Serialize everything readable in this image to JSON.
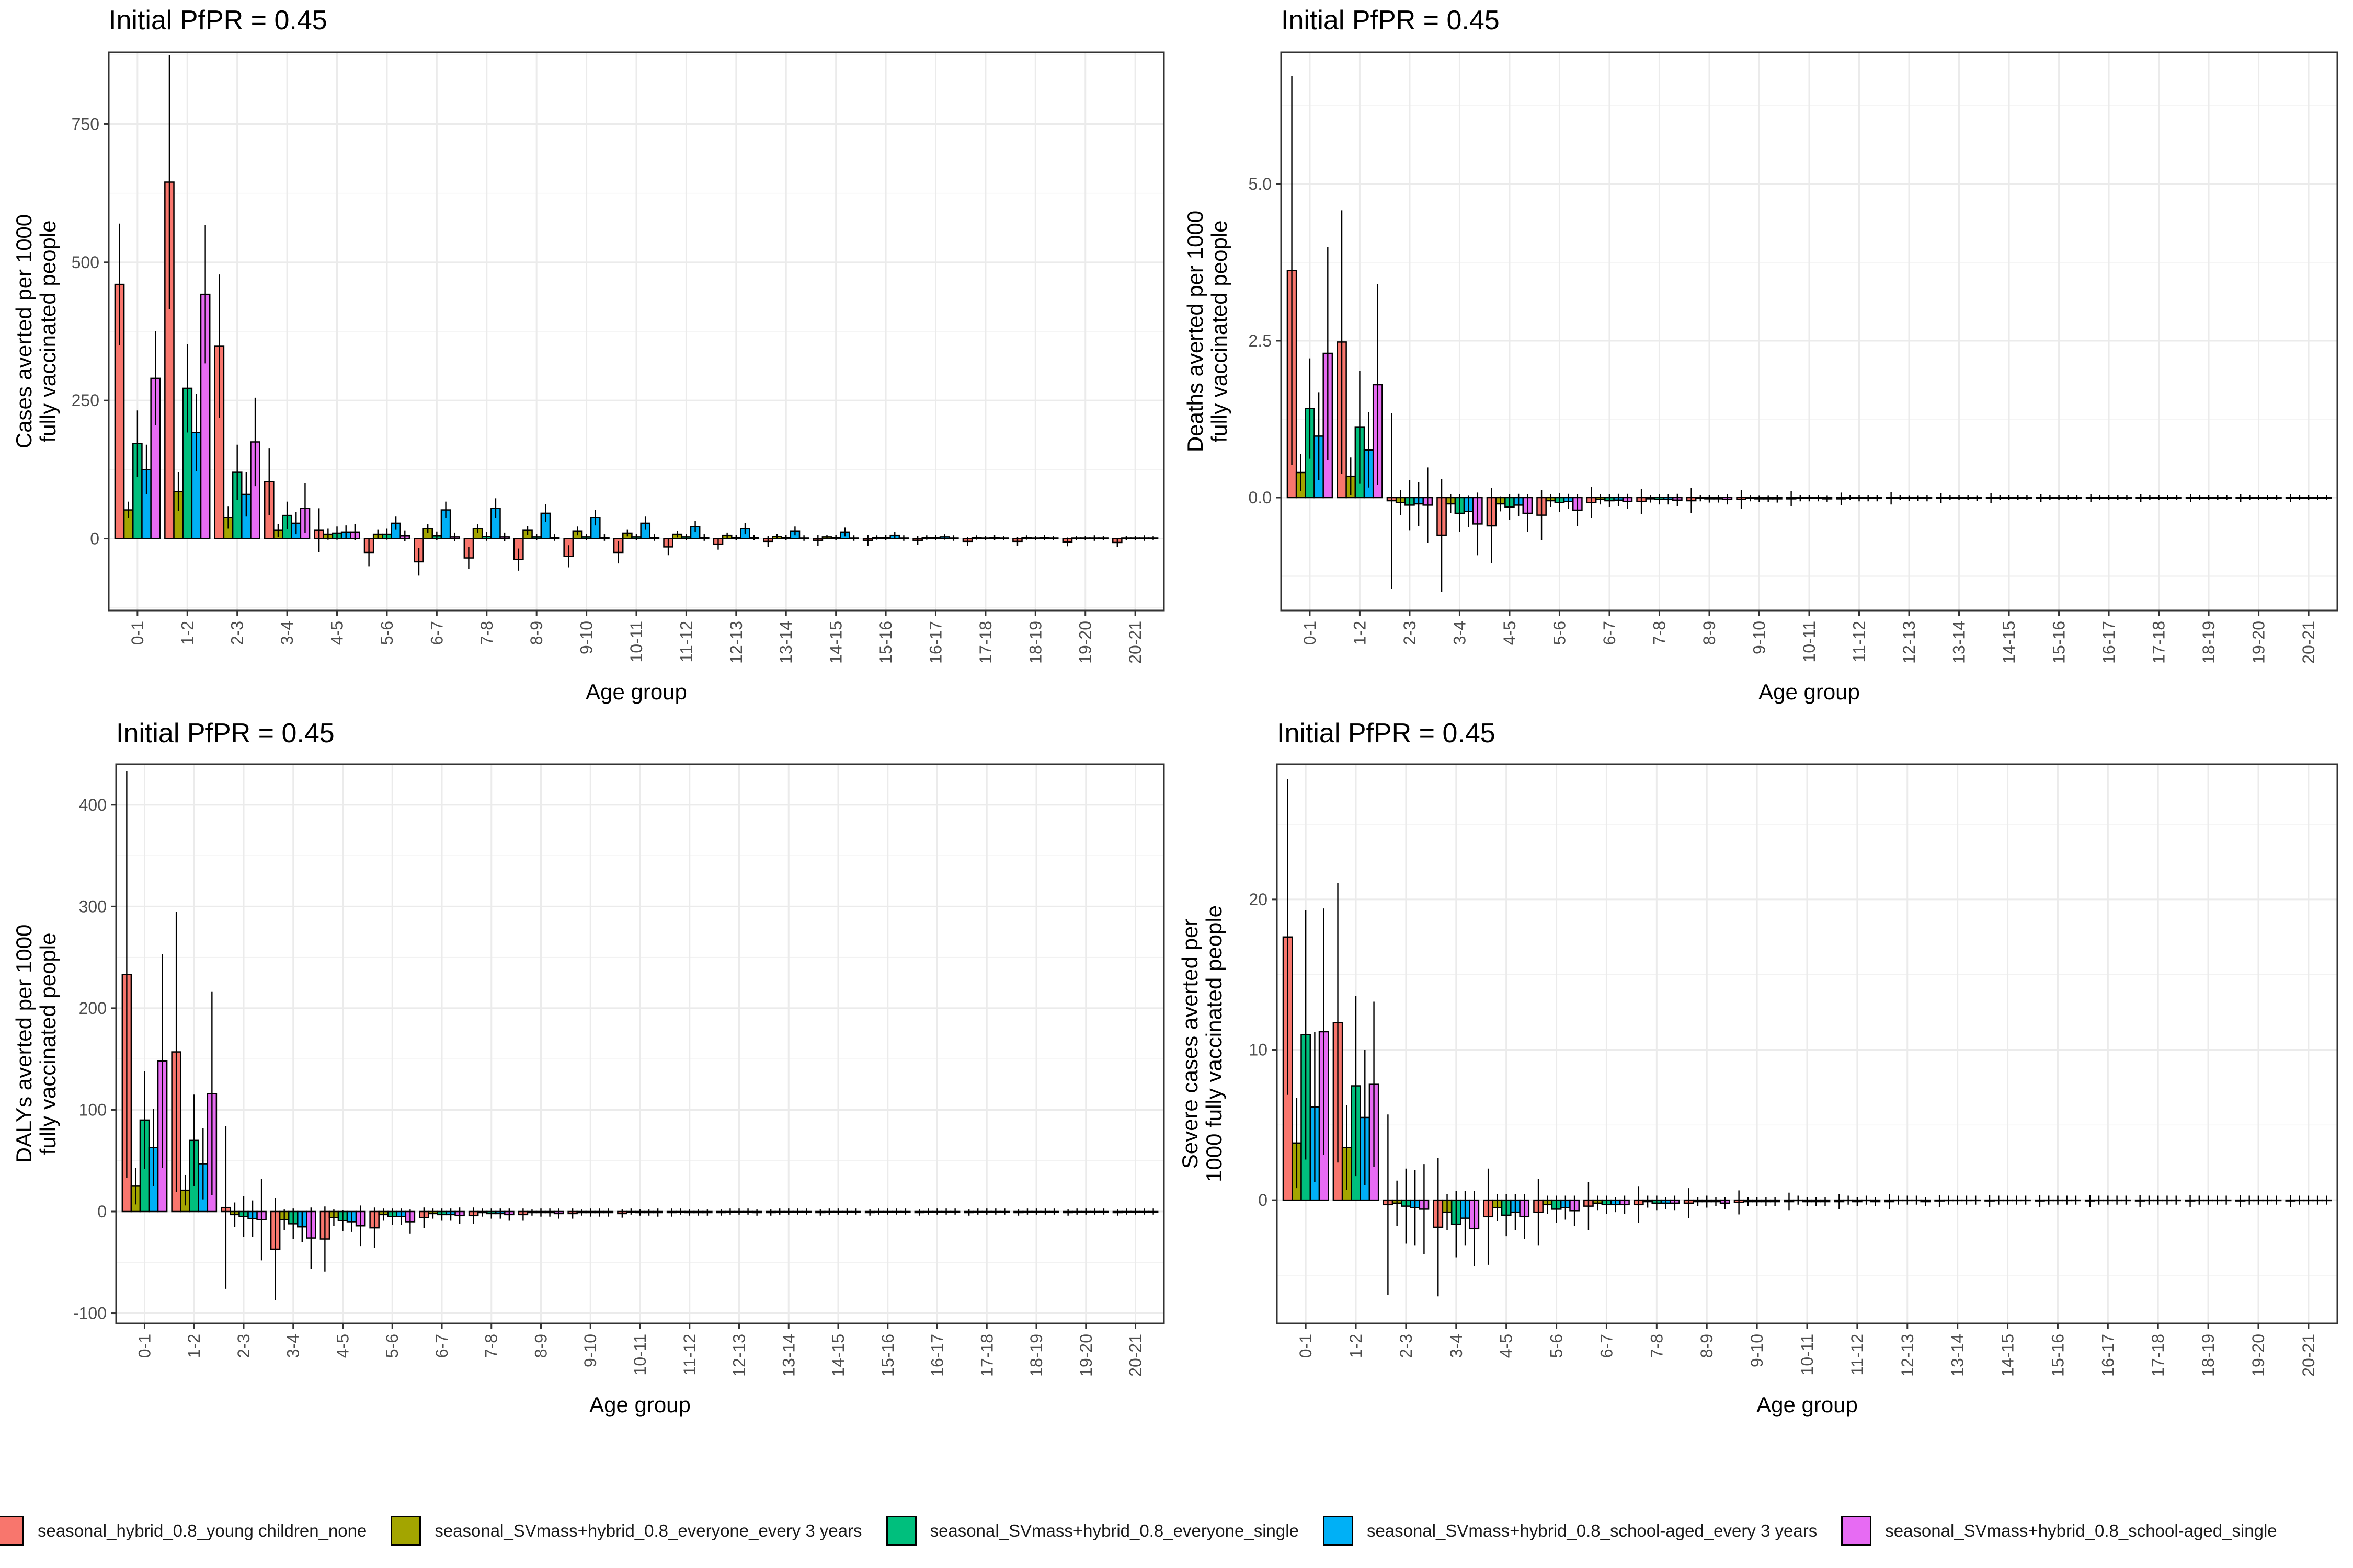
{
  "chart_data": [
    {
      "type": "bar",
      "title": "Initial PfPR = 0.45",
      "xlabel": "Age group",
      "ylabel": [
        "Cases averted per 1000",
        "fully vaccinated people"
      ],
      "ylim": [
        -130,
        880
      ],
      "yticks": [
        0,
        250,
        500,
        750
      ],
      "ytick_labels": [
        "0",
        "250",
        "500",
        "750"
      ],
      "grid": true,
      "categories": [
        "0-1",
        "1-2",
        "2-3",
        "3-4",
        "4-5",
        "5-6",
        "6-7",
        "7-8",
        "8-9",
        "9-10",
        "10-11",
        "11-12",
        "12-13",
        "13-14",
        "14-15",
        "15-16",
        "16-17",
        "17-18",
        "18-19",
        "19-20",
        "20-21"
      ],
      "series": [
        {
          "color": "#F8766D",
          "values": [
            460,
            645,
            348,
            103,
            15,
            -25,
            -42,
            -35,
            -38,
            -32,
            -25,
            -15,
            -10,
            -5,
            -3,
            -3,
            -3,
            -5,
            -5,
            -6,
            -7
          ],
          "err": [
            110,
            230,
            130,
            60,
            40,
            25,
            25,
            20,
            20,
            20,
            20,
            15,
            10,
            10,
            10,
            10,
            8,
            8,
            8,
            8,
            8
          ]
        },
        {
          "color": "#A3A500",
          "values": [
            52,
            85,
            38,
            15,
            8,
            8,
            18,
            18,
            15,
            14,
            10,
            8,
            6,
            4,
            3,
            2,
            2,
            2,
            2,
            1,
            1
          ],
          "err": [
            15,
            35,
            20,
            12,
            10,
            8,
            8,
            8,
            8,
            8,
            6,
            6,
            5,
            5,
            4,
            4,
            4,
            4,
            4,
            4,
            4
          ]
        },
        {
          "color": "#00BF7D",
          "values": [
            172,
            272,
            120,
            42,
            10,
            8,
            5,
            4,
            3,
            3,
            3,
            3,
            2,
            2,
            2,
            2,
            2,
            1,
            1,
            1,
            1
          ],
          "err": [
            60,
            80,
            50,
            25,
            12,
            10,
            8,
            8,
            6,
            6,
            6,
            6,
            5,
            5,
            5,
            5,
            5,
            4,
            4,
            4,
            4
          ]
        },
        {
          "color": "#00B0F6",
          "values": [
            125,
            192,
            80,
            28,
            12,
            28,
            52,
            55,
            46,
            38,
            28,
            22,
            18,
            14,
            12,
            6,
            3,
            2,
            2,
            1,
            1
          ],
          "err": [
            45,
            70,
            40,
            20,
            12,
            12,
            15,
            18,
            16,
            14,
            12,
            10,
            10,
            8,
            8,
            6,
            5,
            5,
            5,
            5,
            5
          ]
        },
        {
          "color": "#E76BF3",
          "values": [
            290,
            442,
            175,
            55,
            12,
            5,
            3,
            3,
            2,
            2,
            2,
            2,
            2,
            1,
            1,
            1,
            1,
            1,
            1,
            1,
            1
          ],
          "err": [
            85,
            125,
            80,
            45,
            15,
            10,
            8,
            8,
            6,
            6,
            6,
            6,
            5,
            5,
            5,
            5,
            5,
            4,
            4,
            4,
            4
          ]
        }
      ]
    },
    {
      "type": "bar",
      "title": "Initial PfPR = 0.45",
      "xlabel": "Age group",
      "ylabel": [
        "Deaths averted per 1000",
        "fully vaccinated people"
      ],
      "ylim": [
        -1.8,
        7.1
      ],
      "yticks": [
        0,
        2.5,
        5
      ],
      "ytick_labels": [
        "0.0",
        "2.5",
        "5.0"
      ],
      "grid": true,
      "categories": [
        "0-1",
        "1-2",
        "2-3",
        "3-4",
        "4-5",
        "5-6",
        "6-7",
        "7-8",
        "8-9",
        "9-10",
        "10-11",
        "11-12",
        "12-13",
        "13-14",
        "14-15",
        "15-16",
        "16-17",
        "17-18",
        "18-19",
        "19-20",
        "20-21"
      ],
      "series": [
        {
          "color": "#F8766D",
          "values": [
            3.62,
            2.48,
            -0.05,
            -0.6,
            -0.45,
            -0.28,
            -0.08,
            -0.06,
            -0.05,
            -0.03,
            -0.02,
            -0.02,
            -0.01,
            -0.01,
            -0.01,
            -0.01,
            -0.01,
            -0.01,
            -0.01,
            -0.01,
            -0.01
          ],
          "err": [
            3.1,
            2.1,
            1.4,
            0.9,
            0.6,
            0.4,
            0.25,
            0.2,
            0.2,
            0.15,
            0.12,
            0.1,
            0.1,
            0.08,
            0.08,
            0.06,
            0.06,
            0.06,
            0.06,
            0.06,
            0.06
          ]
        },
        {
          "color": "#A3A500",
          "values": [
            0.4,
            0.34,
            -0.08,
            -0.1,
            -0.1,
            -0.05,
            -0.03,
            -0.02,
            -0.01,
            -0.01,
            -0.01,
            0,
            0,
            0,
            0,
            0,
            0,
            0,
            0,
            0,
            0
          ],
          "err": [
            0.3,
            0.3,
            0.2,
            0.15,
            0.12,
            0.1,
            0.08,
            0.06,
            0.05,
            0.05,
            0.05,
            0.04,
            0.04,
            0.04,
            0.04,
            0.04,
            0.04,
            0.04,
            0.04,
            0.04,
            0.04
          ]
        },
        {
          "color": "#00BF7D",
          "values": [
            1.42,
            1.12,
            -0.12,
            -0.25,
            -0.15,
            -0.08,
            -0.05,
            -0.03,
            -0.02,
            -0.02,
            -0.01,
            -0.01,
            -0.01,
            0,
            0,
            0,
            0,
            0,
            0,
            0,
            0
          ],
          "err": [
            0.8,
            0.9,
            0.4,
            0.3,
            0.2,
            0.15,
            0.1,
            0.08,
            0.06,
            0.05,
            0.05,
            0.05,
            0.04,
            0.04,
            0.04,
            0.04,
            0.04,
            0.04,
            0.04,
            0.04,
            0.04
          ]
        },
        {
          "color": "#00B0F6",
          "values": [
            0.98,
            0.76,
            -0.1,
            -0.22,
            -0.12,
            -0.06,
            -0.04,
            -0.03,
            -0.02,
            -0.02,
            -0.01,
            -0.01,
            -0.01,
            0,
            0,
            0,
            0,
            0,
            0,
            0,
            0
          ],
          "err": [
            0.7,
            0.6,
            0.35,
            0.25,
            0.18,
            0.12,
            0.1,
            0.08,
            0.06,
            0.05,
            0.05,
            0.05,
            0.04,
            0.04,
            0.04,
            0.04,
            0.04,
            0.04,
            0.04,
            0.04,
            0.04
          ]
        },
        {
          "color": "#E76BF3",
          "values": [
            2.3,
            1.8,
            -0.12,
            -0.42,
            -0.25,
            -0.2,
            -0.06,
            -0.04,
            -0.03,
            -0.02,
            -0.02,
            -0.01,
            -0.01,
            -0.01,
            0,
            0,
            0,
            0,
            0,
            0,
            0
          ],
          "err": [
            1.7,
            1.6,
            0.6,
            0.5,
            0.3,
            0.25,
            0.12,
            0.1,
            0.08,
            0.06,
            0.05,
            0.05,
            0.05,
            0.04,
            0.04,
            0.04,
            0.04,
            0.04,
            0.04,
            0.04,
            0.04
          ]
        }
      ]
    },
    {
      "type": "bar",
      "title": "Initial PfPR = 0.45",
      "xlabel": "Age group",
      "ylabel": [
        "DALYs averted per 1000",
        "fully vaccinated people"
      ],
      "ylim": [
        -110,
        440
      ],
      "yticks": [
        -100,
        0,
        100,
        200,
        300,
        400
      ],
      "ytick_labels": [
        "-100",
        "0",
        "100",
        "200",
        "300",
        "400"
      ],
      "grid": true,
      "categories": [
        "0-1",
        "1-2",
        "2-3",
        "3-4",
        "4-5",
        "5-6",
        "6-7",
        "7-8",
        "8-9",
        "9-10",
        "10-11",
        "11-12",
        "12-13",
        "13-14",
        "14-15",
        "15-16",
        "16-17",
        "17-18",
        "18-19",
        "19-20",
        "20-21"
      ],
      "series": [
        {
          "color": "#F8766D",
          "values": [
            233,
            157,
            4,
            -37,
            -27,
            -16,
            -6,
            -4,
            -3,
            -2,
            -2,
            -1,
            -1,
            -1,
            -1,
            -1,
            -1,
            -1,
            -1,
            -1,
            -1
          ],
          "err": [
            200,
            138,
            80,
            50,
            32,
            20,
            10,
            8,
            6,
            5,
            4,
            4,
            3,
            3,
            3,
            3,
            3,
            3,
            3,
            3,
            3
          ]
        },
        {
          "color": "#A3A500",
          "values": [
            25,
            21,
            -3,
            -8,
            -6,
            -3,
            -2,
            -1,
            -1,
            -1,
            0,
            0,
            0,
            0,
            0,
            0,
            0,
            0,
            0,
            0,
            0
          ],
          "err": [
            18,
            15,
            12,
            10,
            8,
            6,
            5,
            4,
            3,
            3,
            3,
            3,
            3,
            3,
            3,
            3,
            3,
            3,
            3,
            3,
            3
          ]
        },
        {
          "color": "#00BF7D",
          "values": [
            90,
            70,
            -5,
            -12,
            -9,
            -5,
            -3,
            -2,
            -1,
            -1,
            -1,
            -1,
            0,
            0,
            0,
            0,
            0,
            0,
            0,
            0,
            0
          ],
          "err": [
            48,
            45,
            20,
            15,
            10,
            8,
            6,
            5,
            4,
            4,
            3,
            3,
            3,
            3,
            3,
            3,
            3,
            3,
            3,
            3,
            3
          ]
        },
        {
          "color": "#00B0F6",
          "values": [
            63,
            47,
            -7,
            -15,
            -10,
            -5,
            -3,
            -2,
            -1,
            -1,
            -1,
            -1,
            0,
            0,
            0,
            0,
            0,
            0,
            0,
            0,
            0
          ],
          "err": [
            38,
            35,
            18,
            15,
            10,
            8,
            6,
            5,
            4,
            4,
            3,
            3,
            3,
            3,
            3,
            3,
            3,
            3,
            3,
            3,
            3
          ]
        },
        {
          "color": "#E76BF3",
          "values": [
            148,
            116,
            -8,
            -26,
            -14,
            -10,
            -4,
            -3,
            -2,
            -1,
            -1,
            -1,
            -1,
            0,
            0,
            0,
            0,
            0,
            0,
            0,
            0
          ],
          "err": [
            105,
            100,
            40,
            30,
            20,
            12,
            8,
            6,
            5,
            4,
            4,
            3,
            3,
            3,
            3,
            3,
            3,
            3,
            3,
            3,
            3
          ]
        }
      ]
    },
    {
      "type": "bar",
      "title": "Initial PfPR = 0.45",
      "xlabel": "Age group",
      "ylabel": [
        "Severe cases averted per",
        "1000 fully vaccinated people"
      ],
      "ylim": [
        -8.2,
        29
      ],
      "yticks": [
        0,
        10,
        20
      ],
      "ytick_labels": [
        "0",
        "10",
        "20"
      ],
      "grid": true,
      "categories": [
        "0-1",
        "1-2",
        "2-3",
        "3-4",
        "4-5",
        "5-6",
        "6-7",
        "7-8",
        "8-9",
        "9-10",
        "10-11",
        "11-12",
        "12-13",
        "13-14",
        "14-15",
        "15-16",
        "16-17",
        "17-18",
        "18-19",
        "19-20",
        "20-21"
      ],
      "series": [
        {
          "color": "#F8766D",
          "values": [
            17.5,
            11.8,
            -0.3,
            -1.8,
            -1.1,
            -0.8,
            -0.4,
            -0.3,
            -0.2,
            -0.15,
            -0.1,
            -0.1,
            -0.1,
            -0.05,
            -0.05,
            -0.05,
            -0.05,
            -0.05,
            -0.05,
            -0.05,
            -0.05
          ],
          "err": [
            10.5,
            9.3,
            6,
            4.6,
            3.2,
            2.2,
            1.6,
            1.2,
            1,
            0.8,
            0.6,
            0.5,
            0.5,
            0.4,
            0.4,
            0.4,
            0.4,
            0.4,
            0.4,
            0.4,
            0.4
          ]
        },
        {
          "color": "#A3A500",
          "values": [
            3.8,
            3.5,
            -0.2,
            -0.8,
            -0.5,
            -0.3,
            -0.2,
            -0.1,
            -0.1,
            -0.1,
            0,
            0,
            0,
            0,
            0,
            0,
            0,
            0,
            0,
            0,
            0
          ],
          "err": [
            3,
            2.8,
            1.5,
            1.2,
            0.9,
            0.6,
            0.5,
            0.4,
            0.3,
            0.3,
            0.3,
            0.3,
            0.3,
            0.3,
            0.3,
            0.3,
            0.3,
            0.3,
            0.3,
            0.3,
            0.3
          ]
        },
        {
          "color": "#00BF7D",
          "values": [
            11,
            7.6,
            -0.4,
            -1.6,
            -1,
            -0.6,
            -0.3,
            -0.2,
            -0.1,
            -0.1,
            -0.1,
            -0.1,
            0,
            0,
            0,
            0,
            0,
            0,
            0,
            0,
            0
          ],
          "err": [
            8.3,
            6,
            2.5,
            2.2,
            1.4,
            0.9,
            0.6,
            0.5,
            0.4,
            0.3,
            0.3,
            0.3,
            0.3,
            0.3,
            0.3,
            0.3,
            0.3,
            0.3,
            0.3,
            0.3,
            0.3
          ]
        },
        {
          "color": "#00B0F6",
          "values": [
            6.2,
            5.5,
            -0.5,
            -1.2,
            -0.8,
            -0.5,
            -0.3,
            -0.2,
            -0.1,
            -0.1,
            -0.1,
            0,
            0,
            0,
            0,
            0,
            0,
            0,
            0,
            0,
            0
          ],
          "err": [
            5,
            4.5,
            2.5,
            1.8,
            1.2,
            0.8,
            0.5,
            0.4,
            0.3,
            0.3,
            0.3,
            0.3,
            0.3,
            0.3,
            0.3,
            0.3,
            0.3,
            0.3,
            0.3,
            0.3,
            0.3
          ]
        },
        {
          "color": "#E76BF3",
          "values": [
            11.2,
            7.7,
            -0.6,
            -1.9,
            -1.1,
            -0.7,
            -0.3,
            -0.2,
            -0.2,
            -0.1,
            -0.1,
            -0.1,
            -0.1,
            0,
            0,
            0,
            0,
            0,
            0,
            0,
            0
          ],
          "err": [
            8.2,
            5.5,
            3,
            2.5,
            1.5,
            1,
            0.6,
            0.5,
            0.4,
            0.3,
            0.3,
            0.3,
            0.3,
            0.3,
            0.3,
            0.3,
            0.3,
            0.3,
            0.3,
            0.3,
            0.3
          ]
        }
      ]
    }
  ],
  "legend": [
    {
      "label": "seasonal_hybrid_0.8_young children_none",
      "color": "#F8766D"
    },
    {
      "label": "seasonal_SVmass+hybrid_0.8_everyone_every 3 years",
      "color": "#A3A500"
    },
    {
      "label": "seasonal_SVmass+hybrid_0.8_everyone_single",
      "color": "#00BF7D"
    },
    {
      "label": "seasonal_SVmass+hybrid_0.8_school-aged_every 3 years",
      "color": "#00B0F6"
    },
    {
      "label": "seasonal_SVmass+hybrid_0.8_school-aged_single",
      "color": "#E76BF3"
    }
  ]
}
